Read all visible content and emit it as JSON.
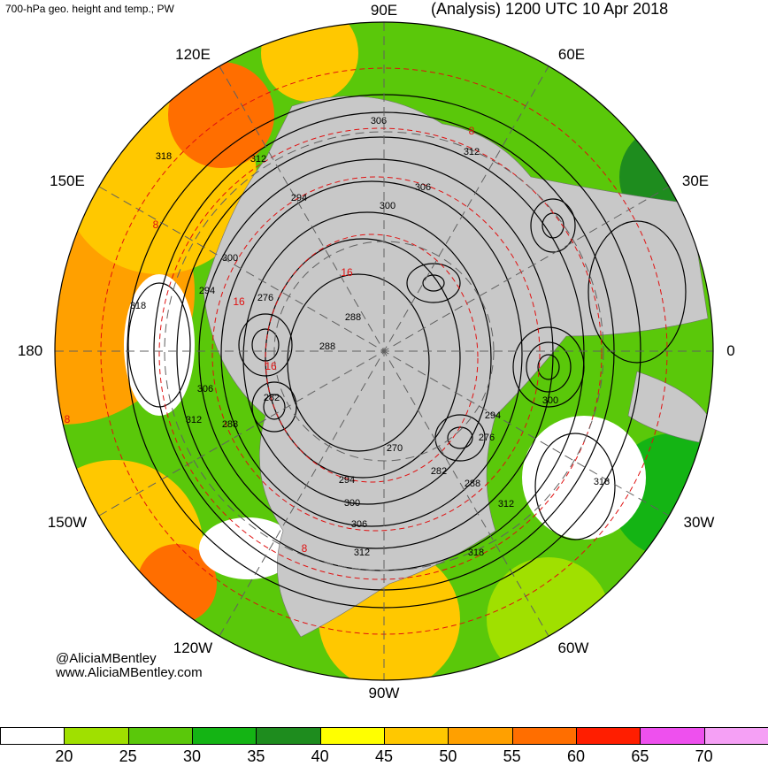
{
  "header": {
    "left_title": "700-hPa geo. height and temp.; PW",
    "right_title": "(Analysis) 1200 UTC 10 Apr 2018"
  },
  "longitude_labels": [
    "90E",
    "60E",
    "30E",
    "0",
    "30W",
    "60W",
    "90W",
    "120W",
    "150W",
    "180",
    "150E",
    "120E"
  ],
  "contour_labels": [
    "306",
    "312",
    "312",
    "306",
    "300",
    "294",
    "300",
    "294",
    "276",
    "288",
    "288",
    "282",
    "288",
    "306",
    "312",
    "270",
    "282",
    "288",
    "294",
    "300",
    "306",
    "312",
    "318",
    "312",
    "300",
    "294",
    "276",
    "318",
    "318",
    "318"
  ],
  "temp_labels": [
    "8",
    "8",
    "16",
    "16",
    "16",
    "8",
    "8"
  ],
  "credits": {
    "line1": "@AliciaMBentley",
    "line2": "www.AliciaMBentley.com"
  },
  "legend": {
    "colors": [
      "#ffffff",
      "#a0e000",
      "#5ac80a",
      "#14b414",
      "#1e8c1e",
      "#ffff00",
      "#ffc800",
      "#ffa000",
      "#ff6e00",
      "#ff1e00",
      "#ee50ee",
      "#f5a0f5"
    ],
    "ticks": [
      "20",
      "25",
      "30",
      "35",
      "40",
      "45",
      "50",
      "55",
      "60",
      "65",
      "70"
    ]
  },
  "colors": {
    "land": "#c8c8c8",
    "height_contour": "#000000",
    "temp_contour": "#e01010"
  }
}
